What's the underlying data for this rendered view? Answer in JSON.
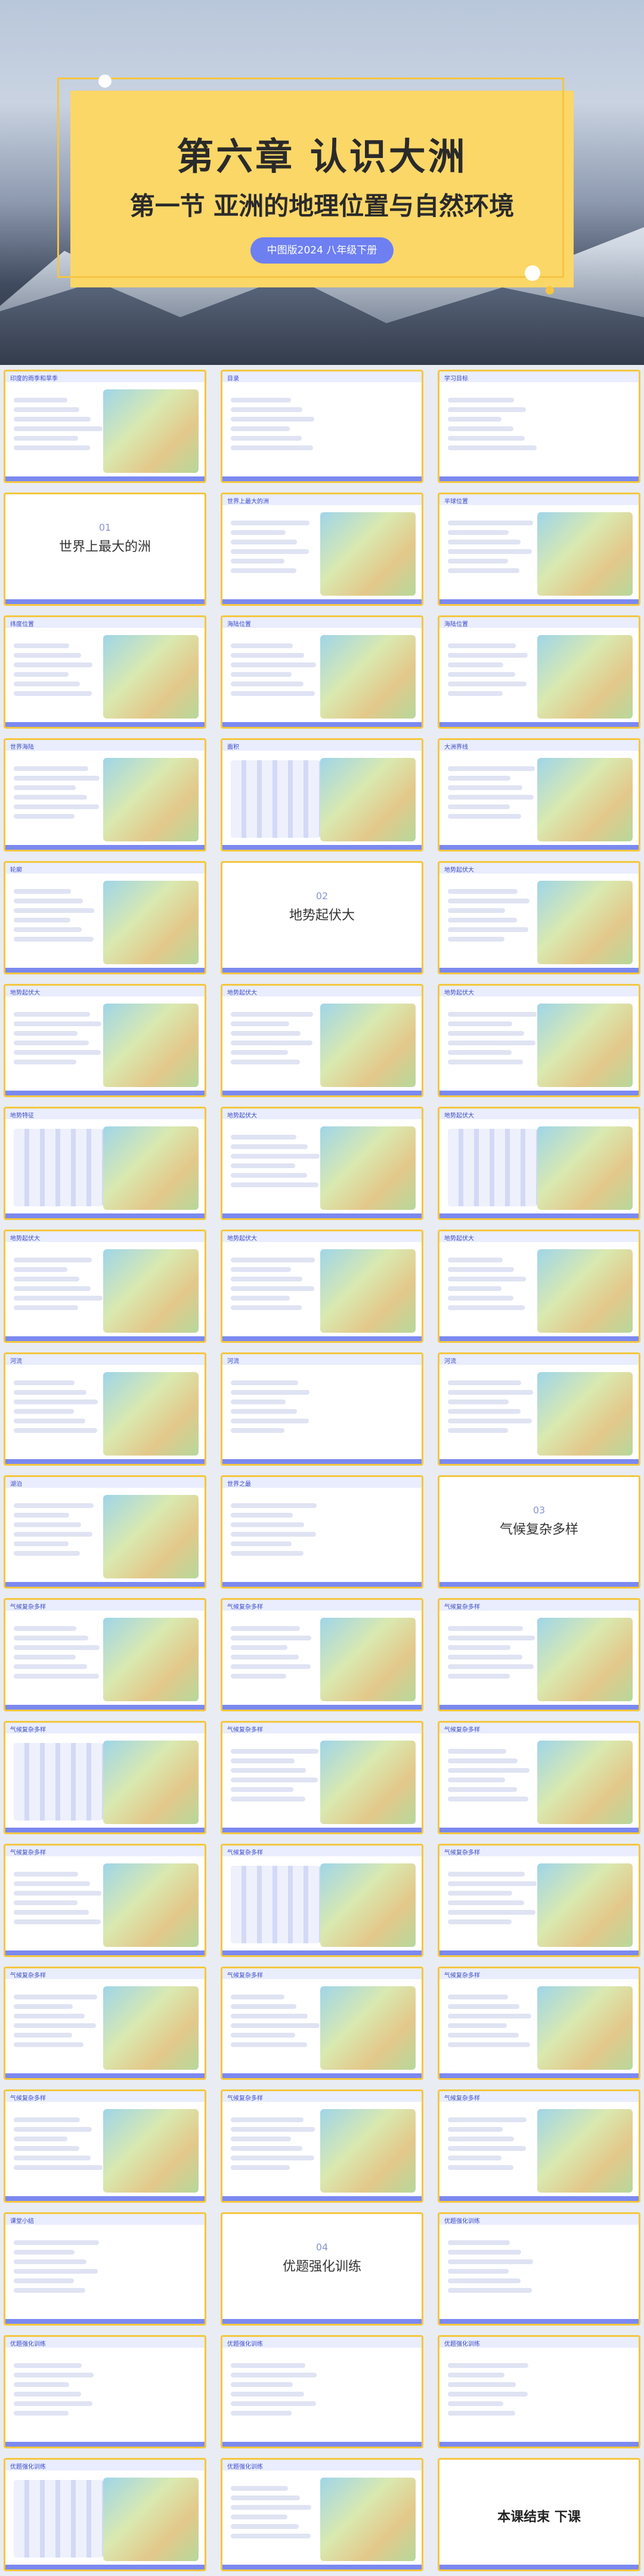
{
  "cover": {
    "title": "第六章  认识大洲",
    "subtitle": "第一节   亚洲的地理位置与自然环境",
    "badge": "中图版2024  八年级下册"
  },
  "slides": [
    {
      "label": "印度的雨季和旱季",
      "kind": "img"
    },
    {
      "label": "目录",
      "kind": "list"
    },
    {
      "label": "学习目标",
      "kind": "list"
    },
    {
      "label": "世界上最大的洲",
      "num": "01",
      "kind": "section"
    },
    {
      "label": "世界上最大的洲",
      "kind": "map"
    },
    {
      "label": "半球位置",
      "kind": "map"
    },
    {
      "label": "纬度位置",
      "kind": "map"
    },
    {
      "label": "海陆位置",
      "kind": "map"
    },
    {
      "label": "海陆位置",
      "kind": "map"
    },
    {
      "label": "世界海陆",
      "kind": "map"
    },
    {
      "label": "面积",
      "kind": "chart"
    },
    {
      "label": "大洲界线",
      "kind": "map"
    },
    {
      "label": "轮廓",
      "kind": "map"
    },
    {
      "label": "地势起伏大",
      "num": "02",
      "kind": "section"
    },
    {
      "label": "地势起伏大",
      "kind": "map"
    },
    {
      "label": "地势起伏大",
      "kind": "map"
    },
    {
      "label": "地势起伏大",
      "kind": "map"
    },
    {
      "label": "地势起伏大",
      "kind": "map"
    },
    {
      "label": "地势特征",
      "kind": "chart"
    },
    {
      "label": "地势起伏大",
      "kind": "map"
    },
    {
      "label": "地势起伏大",
      "kind": "chart"
    },
    {
      "label": "地势起伏大",
      "kind": "map"
    },
    {
      "label": "地势起伏大",
      "kind": "map"
    },
    {
      "label": "地势起伏大",
      "kind": "map"
    },
    {
      "label": "河流",
      "kind": "img"
    },
    {
      "label": "河流",
      "kind": "list"
    },
    {
      "label": "河流",
      "kind": "map"
    },
    {
      "label": "湖泊",
      "kind": "img"
    },
    {
      "label": "世界之最",
      "kind": "list"
    },
    {
      "label": "气候复杂多样",
      "num": "03",
      "kind": "section"
    },
    {
      "label": "气候复杂多样",
      "kind": "map"
    },
    {
      "label": "气候复杂多样",
      "kind": "map"
    },
    {
      "label": "气候复杂多样",
      "kind": "map"
    },
    {
      "label": "气候复杂多样",
      "kind": "chart"
    },
    {
      "label": "气候复杂多样",
      "kind": "img"
    },
    {
      "label": "气候复杂多样",
      "kind": "img"
    },
    {
      "label": "气候复杂多样",
      "kind": "img"
    },
    {
      "label": "气候复杂多样",
      "kind": "chart"
    },
    {
      "label": "气候复杂多样",
      "kind": "map"
    },
    {
      "label": "气候复杂多样",
      "kind": "map"
    },
    {
      "label": "气候复杂多样",
      "kind": "map"
    },
    {
      "label": "气候复杂多样",
      "kind": "map"
    },
    {
      "label": "气候复杂多样",
      "kind": "img"
    },
    {
      "label": "气候复杂多样",
      "kind": "img"
    },
    {
      "label": "气候复杂多样",
      "kind": "map"
    },
    {
      "label": "课堂小结",
      "kind": "list"
    },
    {
      "label": "优题强化训练",
      "num": "04",
      "kind": "section"
    },
    {
      "label": "优题强化训练",
      "kind": "list"
    },
    {
      "label": "优题强化训练",
      "kind": "list"
    },
    {
      "label": "优题强化训练",
      "kind": "list"
    },
    {
      "label": "优题强化训练",
      "kind": "list"
    },
    {
      "label": "优题强化训练",
      "kind": "chart"
    },
    {
      "label": "优题强化训练",
      "kind": "map"
    },
    {
      "label": "本课结束  下课",
      "kind": "end"
    }
  ]
}
